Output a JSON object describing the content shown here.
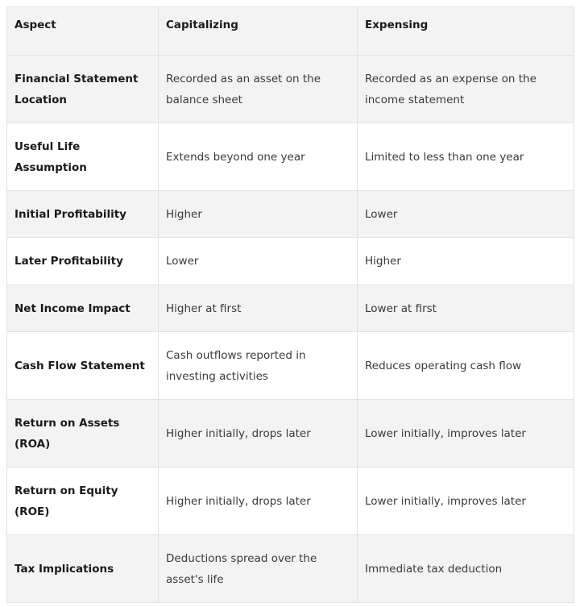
{
  "headers": [
    "Aspect",
    "Capitalizing",
    "Expensing"
  ],
  "rows": [
    {
      "aspect": "Financial Statement Location",
      "capitalizing": "Recorded as an asset on the balance sheet",
      "expensing": "Recorded as an expense on the income statement"
    },
    {
      "aspect": "Useful Life Assumption",
      "capitalizing": "Extends beyond one year",
      "expensing": "Limited to less than one year"
    },
    {
      "aspect": "Initial Profitability",
      "capitalizing": "Higher",
      "expensing": "Lower"
    },
    {
      "aspect": "Later Profitability",
      "capitalizing": "Lower",
      "expensing": "Higher"
    },
    {
      "aspect": "Net Income Impact",
      "capitalizing": "Higher at first",
      "expensing": "Lower at first"
    },
    {
      "aspect": "Cash Flow Statement",
      "capitalizing": "Cash outflows reported in investing activities",
      "expensing": "Reduces operating cash flow"
    },
    {
      "aspect": "Return on Assets (ROA)",
      "capitalizing": "Higher initially, drops later",
      "expensing": "Lower initially, improves later"
    },
    {
      "aspect": "Return on Equity (ROE)",
      "capitalizing": "Higher initially, drops later",
      "expensing": "Lower initially, improves later"
    },
    {
      "aspect": "Tax Implications",
      "capitalizing": "Deductions spread over the asset's life",
      "expensing": "Immediate tax deduction"
    }
  ]
}
